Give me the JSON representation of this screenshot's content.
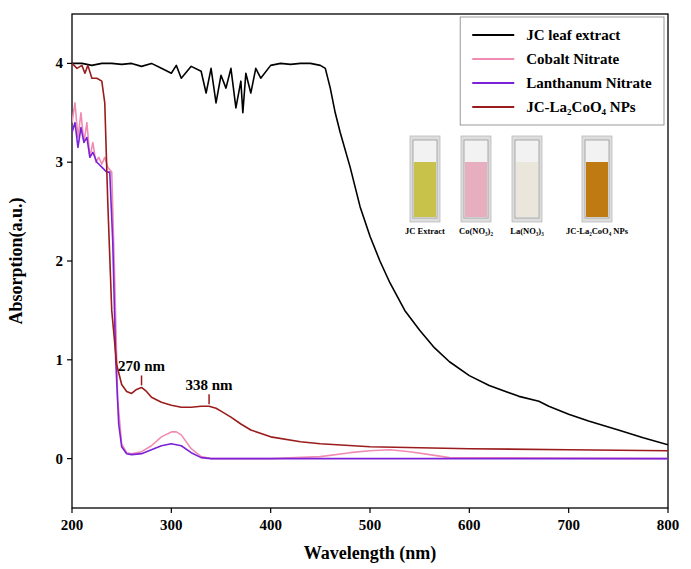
{
  "chart_data": {
    "type": "line",
    "x_label": "Wavelength (nm)",
    "y_label": "Absorption(a.u.)",
    "xlim": [
      200,
      800
    ],
    "xticks": [
      200,
      300,
      400,
      500,
      600,
      700,
      800
    ],
    "ylim": [
      -0.5,
      4.5
    ],
    "yticks": [
      0,
      1,
      2,
      3,
      4
    ],
    "grid": false,
    "legend": "upper right",
    "series": [
      {
        "name": "JC leaf extract",
        "color": "#000000",
        "x": [
          200,
          210,
          220,
          230,
          240,
          250,
          260,
          270,
          280,
          290,
          300,
          305,
          310,
          320,
          330,
          335,
          340,
          345,
          350,
          355,
          360,
          365,
          370,
          372,
          375,
          380,
          385,
          390,
          400,
          410,
          420,
          430,
          440,
          450,
          455,
          460,
          465,
          470,
          480,
          490,
          500,
          510,
          520,
          535,
          550,
          565,
          580,
          600,
          620,
          650,
          670,
          680,
          700,
          720,
          750,
          775,
          800
        ],
        "values": [
          4,
          4,
          3.98,
          4,
          4,
          3.99,
          4,
          3.97,
          4,
          3.95,
          3.9,
          3.98,
          3.85,
          3.97,
          3.92,
          3.7,
          3.95,
          3.6,
          3.88,
          3.75,
          3.95,
          3.55,
          3.82,
          3.5,
          3.9,
          3.7,
          3.95,
          3.85,
          3.98,
          4,
          3.99,
          4,
          4,
          3.98,
          3.95,
          3.75,
          3.5,
          3.3,
          2.95,
          2.55,
          2.25,
          2.0,
          1.78,
          1.5,
          1.3,
          1.12,
          0.98,
          0.84,
          0.74,
          0.63,
          0.58,
          0.53,
          0.45,
          0.38,
          0.29,
          0.21,
          0.14
        ]
      },
      {
        "name": "Cobalt Nitrate",
        "color": "#f08cb4",
        "x": [
          200,
          203,
          206,
          209,
          212,
          215,
          218,
          221,
          224,
          227,
          230,
          233,
          236,
          240,
          243,
          246,
          250,
          255,
          260,
          270,
          280,
          290,
          300,
          305,
          310,
          320,
          330,
          340,
          400,
          450,
          480,
          500,
          520,
          540,
          560,
          580,
          800
        ],
        "values": [
          3.4,
          3.6,
          3.25,
          3.5,
          3.2,
          3.4,
          3.05,
          3.2,
          3.0,
          3.05,
          2.98,
          3.05,
          2.95,
          2.9,
          1.8,
          0.6,
          0.15,
          0.06,
          0.05,
          0.07,
          0.13,
          0.22,
          0.27,
          0.27,
          0.24,
          0.1,
          0.02,
          0,
          0,
          0.02,
          0.06,
          0.08,
          0.09,
          0.07,
          0.04,
          0.01,
          0
        ]
      },
      {
        "name": "Lanthanum  Nitrate",
        "color": "#7b22d8",
        "x": [
          200,
          203,
          206,
          209,
          212,
          215,
          218,
          221,
          225,
          230,
          235,
          238,
          241,
          244,
          247,
          250,
          255,
          260,
          270,
          280,
          290,
          300,
          310,
          320,
          330,
          340,
          800
        ],
        "values": [
          3.3,
          3.4,
          3.15,
          3.35,
          3.2,
          3.25,
          3.05,
          3.1,
          3.0,
          2.95,
          2.9,
          2.9,
          2.2,
          1.0,
          0.35,
          0.12,
          0.05,
          0.04,
          0.05,
          0.09,
          0.13,
          0.15,
          0.13,
          0.06,
          0.01,
          0,
          0
        ]
      },
      {
        "name": "JC-La₂CoO₄ NPs",
        "color": "#9b1c1c",
        "x": [
          200,
          205,
          210,
          213,
          216,
          220,
          225,
          230,
          233,
          236,
          240,
          245,
          250,
          255,
          260,
          265,
          270,
          275,
          280,
          290,
          300,
          310,
          320,
          330,
          338,
          345,
          350,
          360,
          370,
          380,
          400,
          430,
          450,
          500,
          550,
          600,
          700,
          800
        ],
        "values": [
          4,
          3.95,
          3.98,
          3.9,
          3.98,
          3.85,
          3.85,
          3.82,
          3.6,
          2.6,
          1.5,
          0.95,
          0.75,
          0.68,
          0.66,
          0.7,
          0.72,
          0.68,
          0.62,
          0.57,
          0.54,
          0.52,
          0.52,
          0.53,
          0.53,
          0.51,
          0.48,
          0.42,
          0.35,
          0.29,
          0.22,
          0.17,
          0.15,
          0.12,
          0.11,
          0.1,
          0.09,
          0.08
        ]
      }
    ],
    "annotations": [
      {
        "text": "270 nm",
        "x": 270,
        "y": 0.72,
        "color": "#9b1c1c"
      },
      {
        "text": "338 nm",
        "x": 338,
        "y": 0.53,
        "color": "#9b1c1c"
      }
    ],
    "inset": [
      {
        "label": "JC Extract",
        "color": "#c9c24a"
      },
      {
        "label": "Co(NO₃)₂",
        "color": "#e6aebf"
      },
      {
        "label": "La(NO₃)₃",
        "color": "#ebe6dc"
      },
      {
        "label": "JC-La₂CoO₄ NPs",
        "color": "#bf7a12"
      }
    ]
  }
}
